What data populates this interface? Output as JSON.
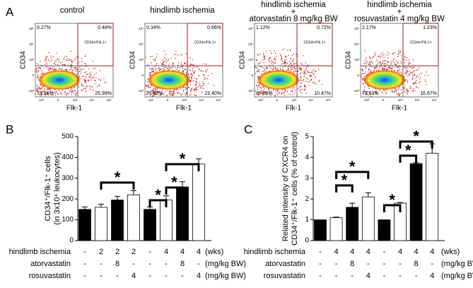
{
  "panel_labels": [
    "A",
    "B",
    "C"
  ],
  "flow_plots": {
    "y_axis_label": "CD34",
    "x_axis_label": "Flk-1",
    "gate_label": "CD34+/Flk-1+",
    "yticks": [
      "10⁵",
      "10⁴",
      "10³",
      "0",
      "-10³"
    ],
    "xticks": [
      "-10³",
      "0",
      "10³",
      "10⁴",
      "10⁵"
    ],
    "plots": [
      {
        "title": [
          "control"
        ],
        "upper_left": "0.27%",
        "upper_right": "0.48%",
        "lower_left": "73.26%",
        "lower_right": "25.99%"
      },
      {
        "title": [
          "hindlimb ischemia"
        ],
        "upper_left": "0.34%",
        "upper_right": "0.66%",
        "lower_left": "75.60%",
        "lower_right": "23.40%"
      },
      {
        "title": [
          "hindlimb ischemia",
          "+",
          "atorvastatin 8 mg/kg BW"
        ],
        "upper_left": "1.12%",
        "upper_right": "0.72%",
        "lower_left": "87.68%",
        "lower_right": "10.47%"
      },
      {
        "title": [
          "hindlimb ischemia",
          "+",
          "rosuvastatin 4 mg/kg BW"
        ],
        "upper_left": "2.17%",
        "upper_right": "1.23%",
        "lower_left": "79.93%",
        "lower_right": "16.67%"
      }
    ]
  },
  "chart_data": [
    {
      "type": "bar",
      "y_label": [
        "CD34⁺/Flk-1⁺ cells",
        "(in 3x10⁴ leukocytes)"
      ],
      "values": [
        150,
        160,
        195,
        220,
        150,
        195,
        258,
        368
      ],
      "errors": [
        12,
        15,
        18,
        20,
        12,
        20,
        25,
        25
      ],
      "bar_colors": [
        "#000000",
        "#ffffff",
        "#000000",
        "#ffffff",
        "#000000",
        "#ffffff",
        "#000000",
        "#ffffff"
      ],
      "ylim": [
        0,
        500
      ],
      "yticks": [
        0,
        100,
        200,
        300,
        400,
        500
      ],
      "annotations": [
        "*",
        "*",
        "*",
        "*"
      ],
      "conditions": [
        {
          "label": "hindlimb ischemia",
          "values": [
            "-",
            "2",
            "2",
            "2",
            "-",
            "4",
            "4",
            "4"
          ],
          "unit": "(wks)"
        },
        {
          "label": "atorvastatin",
          "values": [
            "-",
            "-",
            "8",
            "-",
            "-",
            "-",
            "8",
            "-"
          ],
          "unit": "(mg/kg BW)"
        },
        {
          "label": "rosuvastatin",
          "values": [
            "-",
            "-",
            "-",
            "4",
            "-",
            "-",
            "-",
            "4"
          ],
          "unit": "(mg/kg BW)"
        }
      ]
    },
    {
      "type": "bar",
      "y_label": [
        "Related intensity of CXCR4 on",
        "CD34⁺/Flk-1⁺ cells (% of control)"
      ],
      "values": [
        1.0,
        1.1,
        1.6,
        2.1,
        1.0,
        1.8,
        3.7,
        4.2
      ],
      "errors": [
        0,
        0.03,
        0.2,
        0.2,
        0,
        0.03,
        0.05,
        0.45
      ],
      "bar_colors": [
        "#000000",
        "#ffffff",
        "#000000",
        "#ffffff",
        "#000000",
        "#ffffff",
        "#000000",
        "#ffffff"
      ],
      "ylim": [
        0,
        5
      ],
      "yticks": [
        0,
        1,
        2,
        3,
        4,
        5
      ],
      "annotations": [
        "*",
        "*",
        "*",
        "*",
        "*"
      ],
      "conditions": [
        {
          "label": "hindlimb ischemia",
          "values": [
            "-",
            "4",
            "4",
            "4",
            "-",
            "4",
            "4",
            "4"
          ],
          "unit": "(wks)"
        },
        {
          "label": "atorvastatin",
          "values": [
            "-",
            "-",
            "8",
            "-",
            "-",
            "-",
            "8",
            "-"
          ],
          "unit": "(mg/kg BW)"
        },
        {
          "label": "rosuvastatin",
          "values": [
            "-",
            "-",
            "-",
            "4",
            "-",
            "-",
            "-",
            "4"
          ],
          "unit": "(mg/kg BW)"
        }
      ]
    }
  ]
}
